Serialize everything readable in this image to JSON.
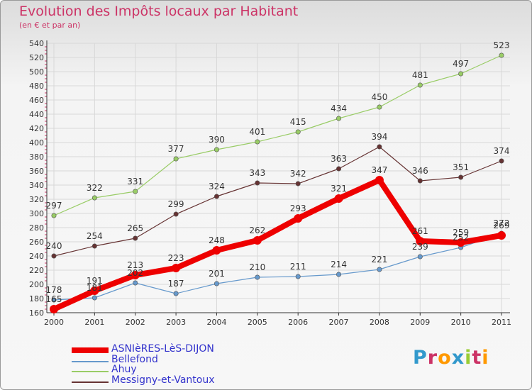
{
  "title": "Evolution des Impôts locaux par Habitant",
  "subtitle": "(en € et par an)",
  "logo_text": "Proxiti",
  "chart_data": {
    "type": "line",
    "title": "Evolution des Impôts locaux par Habitant",
    "subtitle": "(en € et par an)",
    "xlabel": "",
    "ylabel": "",
    "x": [
      "2000",
      "2001",
      "2002",
      "2003",
      "2004",
      "2005",
      "2006",
      "2007",
      "2008",
      "2009",
      "2010",
      "2011"
    ],
    "ylim": [
      160,
      540
    ],
    "yticks": [
      160,
      180,
      200,
      220,
      240,
      260,
      280,
      300,
      320,
      340,
      360,
      380,
      400,
      420,
      440,
      460,
      480,
      500,
      520,
      540
    ],
    "grid": true,
    "legend_position": "bottom-left",
    "series": [
      {
        "name": "ASNIèRES-LèS-DIJON",
        "color": "#ee0000",
        "values": [
          165,
          191,
          213,
          223,
          248,
          262,
          293,
          321,
          347,
          261,
          259,
          269
        ],
        "labels": [
          "165",
          "191",
          "213",
          "223",
          "248",
          "262",
          "293",
          "321",
          "347",
          "261",
          "259",
          "269"
        ]
      },
      {
        "name": "Bellefond",
        "color": "#6699cc",
        "values": [
          178,
          181,
          202,
          187,
          201,
          210,
          211,
          214,
          221,
          239,
          252,
          272
        ],
        "labels": [
          "178",
          "181",
          "202",
          "187",
          "201",
          "210",
          "211",
          "214",
          "221",
          "239",
          "252",
          "272"
        ]
      },
      {
        "name": "Ahuy",
        "color": "#99cc66",
        "values": [
          297,
          322,
          331,
          377,
          390,
          401,
          415,
          434,
          450,
          481,
          497,
          523
        ],
        "labels": [
          "297",
          "322",
          "331",
          "377",
          "390",
          "401",
          "415",
          "434",
          "450",
          "481",
          "497",
          "523"
        ]
      },
      {
        "name": "Messigny-et-Vantoux",
        "color": "#663333",
        "values": [
          240,
          254,
          265,
          299,
          324,
          343,
          342,
          363,
          394,
          346,
          351,
          374
        ],
        "labels": [
          "240",
          "254",
          "265",
          "299",
          "324",
          "343",
          "342",
          "363",
          "394",
          "346",
          "351",
          "374"
        ]
      }
    ]
  }
}
